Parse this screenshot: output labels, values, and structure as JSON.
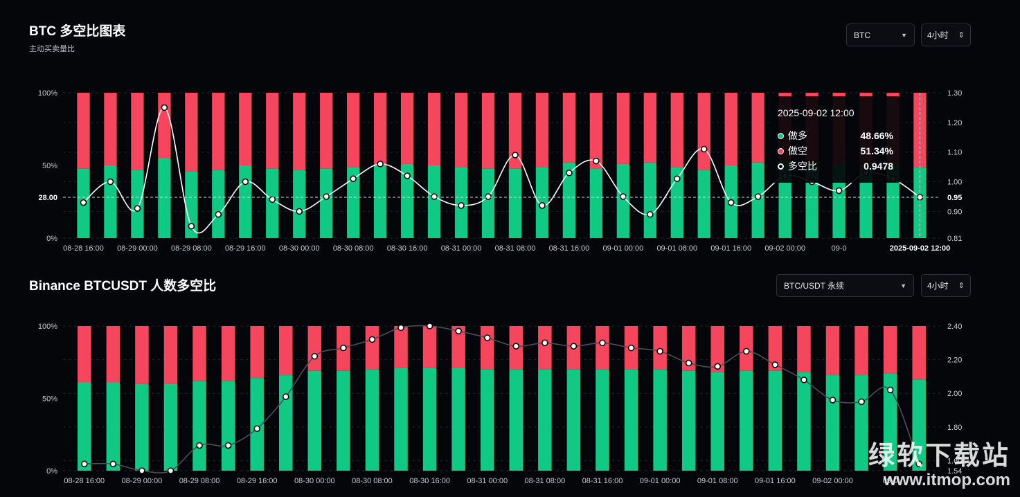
{
  "top": {
    "title": "BTC 多空比图表",
    "subtitle": "主动买卖量比",
    "coin_select": "BTC",
    "coin_select_icon": "caret-down-icon",
    "interval_select": "4小时",
    "interval_select_icon": "up-down-chevron-icon"
  },
  "bottom": {
    "title": "Binance BTCUSDT 人数多空比",
    "pair_select": "BTC/USDT 永续",
    "pair_select_icon": "caret-down-icon",
    "interval_select": "4小时",
    "interval_select_icon": "up-down-chevron-icon"
  },
  "tooltip": {
    "time": "2025-09-02 12:00",
    "long_label": "做多",
    "long_value": "48.66%",
    "short_label": "做空",
    "short_value": "51.34%",
    "ratio_label": "多空比",
    "ratio_value": "0.9478"
  },
  "watermark": {
    "line1": "绿软下载站",
    "line2": "www.itmop.com"
  },
  "chart_data": [
    {
      "type": "bar",
      "stacked": true,
      "title": "BTC 多空比图表",
      "subtitle": "主动买卖量比",
      "x_tick_labels": [
        "08-28 16:00",
        "08-29 00:00",
        "08-29 08:00",
        "08-29 16:00",
        "08-30 00:00",
        "08-30 08:00",
        "08-30 16:00",
        "08-31 00:00",
        "08-31 08:00",
        "08-31 16:00",
        "09-01 00:00",
        "09-01 08:00",
        "09-01 16:00",
        "09-02 00:00",
        "09-0"
      ],
      "left_axis_ticks": [
        "100%",
        "50%",
        "0%"
      ],
      "right_axis_ticks": [
        "1.30",
        "1.20",
        "1.10",
        "1.00",
        "0.90",
        "0.81"
      ],
      "y_left_range": [
        0,
        100
      ],
      "y_right_range": [
        0.81,
        1.3
      ],
      "crosshair": {
        "left_label": "28.00",
        "right_label": "0.95",
        "x_label": "2025-09-02 12:00"
      },
      "colors": {
        "long": "#10c985",
        "short": "#f6465d",
        "line": "#ffffff"
      },
      "series": [
        {
          "name": "做多",
          "values": [
            48,
            50,
            47,
            55,
            46,
            47,
            50,
            48,
            47,
            48,
            49,
            50,
            51,
            50,
            49,
            48,
            48,
            49,
            52,
            48,
            51,
            52,
            49,
            47,
            50,
            52,
            53,
            52,
            51,
            50,
            51,
            48.66
          ]
        },
        {
          "name": "做空",
          "values": [
            52,
            50,
            53,
            45,
            54,
            53,
            50,
            52,
            53,
            52,
            51,
            50,
            49,
            50,
            51,
            52,
            52,
            51,
            48,
            52,
            49,
            48,
            51,
            53,
            50,
            48,
            47,
            48,
            49,
            50,
            49,
            51.34
          ]
        },
        {
          "name": "多空比",
          "axis": "right",
          "values": [
            0.93,
            1.0,
            0.91,
            1.25,
            0.85,
            0.89,
            1.0,
            0.94,
            0.9,
            0.95,
            1.01,
            1.06,
            1.02,
            0.95,
            0.92,
            0.95,
            1.09,
            0.92,
            1.03,
            1.07,
            0.95,
            0.89,
            1.01,
            1.11,
            0.93,
            0.95,
            1.02,
            1.0,
            0.97,
            1.03,
            1.01,
            0.9478
          ]
        }
      ],
      "legend": "tooltip"
    },
    {
      "type": "bar",
      "stacked": true,
      "title": "Binance BTCUSDT 人数多空比",
      "x_tick_labels": [
        "08-28 16:00",
        "08-29 00:00",
        "08-29 08:00",
        "08-29 16:00",
        "08-30 00:00",
        "08-30 08:00",
        "08-30 16:00",
        "08-31 00:00",
        "08-31 08:00",
        "08-31 16:00",
        "09-01 00:00",
        "09-01 08:00",
        "09-01 16:00",
        "09-02 00:00",
        "09-0"
      ],
      "left_axis_ticks": [
        "100%",
        "50%",
        "0%"
      ],
      "right_axis_ticks": [
        "2.40",
        "2.20",
        "2.00",
        "1.80",
        "1.60",
        "1.54"
      ],
      "y_left_range": [
        0,
        100
      ],
      "y_right_range": [
        1.54,
        2.4
      ],
      "colors": {
        "long": "#10c985",
        "short": "#f6465d",
        "line": "#4a4f58"
      },
      "series": [
        {
          "name": "做多",
          "values": [
            61,
            61,
            60,
            60,
            62,
            62,
            64,
            66,
            69,
            69,
            70,
            71,
            71,
            71,
            70,
            70,
            70,
            70,
            70,
            70,
            70,
            69,
            68,
            69,
            69,
            68,
            66,
            66,
            67,
            63
          ]
        },
        {
          "name": "做空",
          "values": [
            39,
            39,
            40,
            40,
            38,
            38,
            36,
            34,
            31,
            31,
            30,
            29,
            29,
            29,
            30,
            30,
            30,
            30,
            30,
            30,
            30,
            31,
            32,
            31,
            31,
            32,
            34,
            34,
            33,
            37
          ]
        },
        {
          "name": "多空比",
          "axis": "right",
          "values": [
            1.58,
            1.58,
            1.54,
            1.54,
            1.69,
            1.69,
            1.79,
            1.98,
            2.22,
            2.27,
            2.32,
            2.39,
            2.4,
            2.37,
            2.33,
            2.28,
            2.3,
            2.28,
            2.3,
            2.27,
            2.25,
            2.18,
            2.16,
            2.25,
            2.17,
            2.08,
            1.96,
            1.95,
            2.02,
            1.58
          ]
        }
      ]
    }
  ]
}
